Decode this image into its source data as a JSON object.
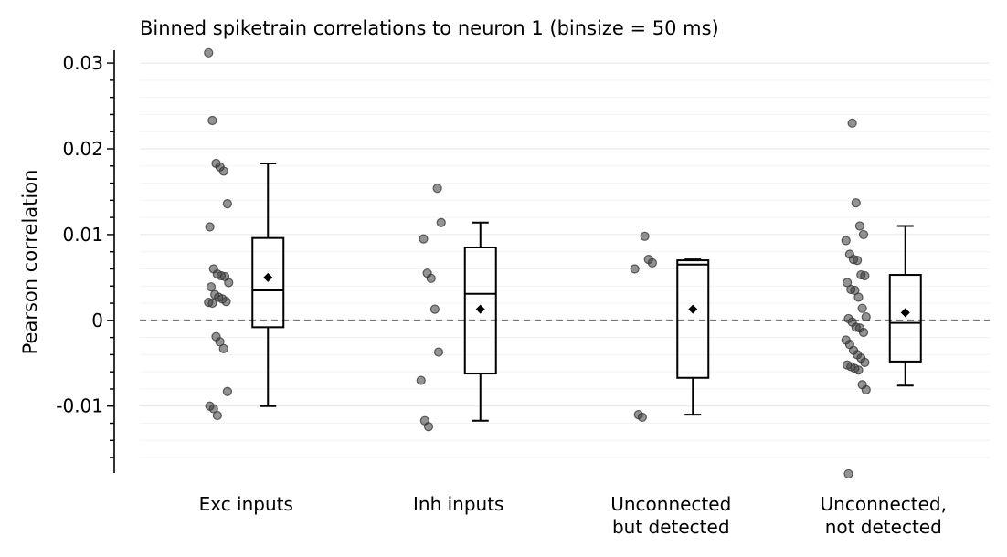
{
  "chart_data": {
    "type": "box",
    "title": "Binned spiketrain correlations to neuron 1  (binsize = 50 ms)",
    "ylabel": "Pearson correlation",
    "xlabel": "",
    "ylim": [
      -0.0178,
      0.0315
    ],
    "yticks": [
      {
        "value": 0.03,
        "label": "0.03"
      },
      {
        "value": 0.02,
        "label": "0.02"
      },
      {
        "value": 0.01,
        "label": "0.01"
      },
      {
        "value": 0,
        "label": "0"
      },
      {
        "value": -0.01,
        "label": "-0.01"
      }
    ],
    "reference_line": {
      "y": 0,
      "style": "dashed",
      "color": "#777777"
    },
    "point_color": "#3a3a3a",
    "box_color": "#000000",
    "grid": true,
    "groups": [
      {
        "label": [
          "Exc inputs"
        ],
        "points": [
          0.0312,
          0.0233,
          0.0183,
          0.0179,
          0.0174,
          0.0136,
          0.0109,
          0.006,
          0.0054,
          0.0052,
          0.0051,
          0.0044,
          0.0039,
          0.003,
          0.0027,
          0.0025,
          0.0022,
          0.0021,
          0.002,
          -0.0019,
          -0.0025,
          -0.0033,
          -0.0083,
          -0.01,
          -0.0103,
          -0.0111
        ],
        "box": {
          "whislo": -0.01,
          "q1": -0.0008,
          "med": 0.0035,
          "q3": 0.0096,
          "whishi": 0.0183,
          "mean": 0.005
        }
      },
      {
        "label": [
          "Inh inputs"
        ],
        "points": [
          0.0154,
          0.0114,
          0.0095,
          0.0055,
          0.0049,
          0.0013,
          -0.0037,
          -0.007,
          -0.0117,
          -0.0124
        ],
        "box": {
          "whislo": -0.0117,
          "q1": -0.0062,
          "med": 0.0031,
          "q3": 0.0085,
          "whishi": 0.0114,
          "mean": 0.0013
        }
      },
      {
        "label": [
          "Unconnected",
          "but detected"
        ],
        "points": [
          0.0098,
          0.0071,
          0.0067,
          0.006,
          -0.011,
          -0.0113
        ],
        "box": {
          "whislo": -0.011,
          "q1": -0.0067,
          "med": 0.0065,
          "q3": 0.007,
          "whishi": 0.0071,
          "mean": 0.0013
        }
      },
      {
        "label": [
          "Unconnected,",
          "not detected"
        ],
        "points": [
          0.023,
          0.0137,
          0.011,
          0.01,
          0.0093,
          0.0077,
          0.0071,
          0.007,
          0.0053,
          0.0052,
          0.0044,
          0.0036,
          0.0035,
          0.0027,
          0.0014,
          0.0004,
          0.0002,
          -0.0002,
          -0.0008,
          -0.0009,
          -0.0014,
          -0.0023,
          -0.0028,
          -0.0035,
          -0.004,
          -0.0044,
          -0.0049,
          -0.0052,
          -0.0054,
          -0.0056,
          -0.0058,
          -0.0075,
          -0.0081,
          -0.0179
        ],
        "box": {
          "whislo": -0.0076,
          "q1": -0.0048,
          "med": -0.0003,
          "q3": 0.0053,
          "whishi": 0.011,
          "mean": 0.0009
        }
      }
    ]
  }
}
